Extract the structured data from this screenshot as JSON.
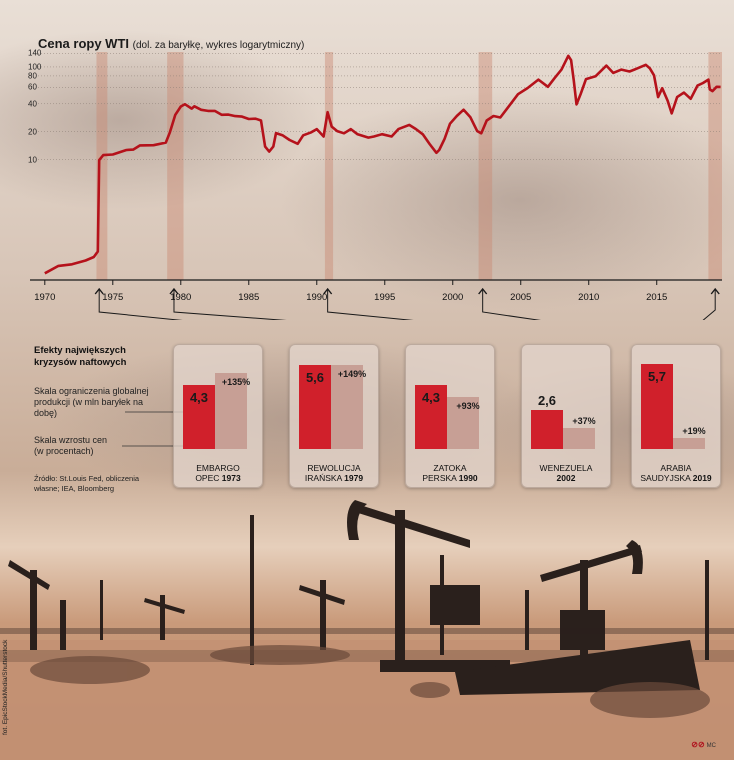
{
  "title": {
    "main": "Cena ropy WTI",
    "sub": "(dol. za baryłkę, wykres logarytmiczny)"
  },
  "chart_data": {
    "type": "line",
    "title": "Cena ropy WTI",
    "subtitle": "(dol. za baryłkę, wykres logarytmiczny)",
    "yscale": "log",
    "yticks": [
      10,
      20,
      40,
      60,
      80,
      100,
      140
    ],
    "ytick_labels": [
      "10",
      "20",
      "40",
      "60",
      "80",
      "100",
      "140"
    ],
    "ylim": [
      0.5,
      145
    ],
    "xticks": [
      1970,
      1975,
      1980,
      1985,
      1990,
      1995,
      2000,
      2005,
      2010,
      2015
    ],
    "xlim": [
      1969.5,
      2019.8
    ],
    "shaded_periods": [
      [
        1973.8,
        1974.6
      ],
      [
        1979.0,
        1980.2
      ],
      [
        1990.6,
        1991.2
      ],
      [
        2001.9,
        2002.9
      ],
      [
        2018.8,
        2019.8
      ]
    ],
    "series": [
      {
        "x": [
          1970.0,
          1971.0,
          1972.0,
          1973.0,
          1973.6,
          1973.9,
          1974.0,
          1974.3,
          1975.0,
          1976.0,
          1976.5,
          1977.0,
          1978.0,
          1978.9,
          1979.2,
          1979.6,
          1980.0,
          1980.3,
          1980.8,
          1981.0,
          1981.5,
          1982.0,
          1982.5,
          1983.0,
          1983.5,
          1984.0,
          1984.5,
          1985.0,
          1985.5,
          1985.9,
          1986.2,
          1986.5,
          1986.8,
          1987.0,
          1987.5,
          1988.0,
          1988.6,
          1989.0,
          1989.6,
          1990.0,
          1990.5,
          1990.8,
          1991.1,
          1991.5,
          1992.0,
          1992.5,
          1993.0,
          1993.8,
          1994.2,
          1994.8,
          1995.5,
          1996.0,
          1996.8,
          1997.3,
          1997.8,
          1998.3,
          1998.8,
          1999.0,
          1999.4,
          1999.8,
          2000.3,
          2000.8,
          2001.3,
          2001.8,
          2002.1,
          2002.5,
          2003.0,
          2003.5,
          2004.0,
          2004.8,
          2005.5,
          2006.3,
          2007.0,
          2007.5,
          2008.0,
          2008.5,
          2008.7,
          2008.9,
          2009.1,
          2009.4,
          2009.8,
          2010.5,
          2011.3,
          2011.8,
          2012.4,
          2013.0,
          2013.5,
          2014.2,
          2014.5,
          2014.8,
          2015.1,
          2015.4,
          2015.8,
          2016.1,
          2016.5,
          2017.0,
          2017.5,
          2018.0,
          2018.4,
          2018.8,
          2018.9,
          2019.1,
          2019.4,
          2019.7
        ],
        "y": [
          0.6,
          0.7,
          0.75,
          0.8,
          0.9,
          1.0,
          10.0,
          11.0,
          11.5,
          12.5,
          13.0,
          14.0,
          14.5,
          15.0,
          20.0,
          30.0,
          38.0,
          39.0,
          36.0,
          37.0,
          35.0,
          33.0,
          34.0,
          30.0,
          31.0,
          29.0,
          29.5,
          27.0,
          28.0,
          26.0,
          14.0,
          12.0,
          14.0,
          19.0,
          18.5,
          16.0,
          15.0,
          18.0,
          20.0,
          21.0,
          18.0,
          32.0,
          23.0,
          20.0,
          19.5,
          21.0,
          19.0,
          17.0,
          18.0,
          18.5,
          18.0,
          21.0,
          24.0,
          21.0,
          19.0,
          14.5,
          12.0,
          12.5,
          17.0,
          24.0,
          30.0,
          34.0,
          29.0,
          20.0,
          19.5,
          26.0,
          30.0,
          28.0,
          36.0,
          50.0,
          60.0,
          72.0,
          62.0,
          75.0,
          95.0,
          130.0,
          120.0,
          70.0,
          40.0,
          50.0,
          75.0,
          78.0,
          105.0,
          85.0,
          95.0,
          88.0,
          97.0,
          104.0,
          98.0,
          80.0,
          48.0,
          58.0,
          44.0,
          31.0,
          48.0,
          52.0,
          46.0,
          62.0,
          68.0,
          72.0,
          58.0,
          54.0,
          62.0,
          60.0
        ]
      }
    ]
  },
  "legend": {
    "title": "Efekty największych kryzysów naftowych",
    "production": "Skala ograniczenia globalnej produkcji (w mln baryłek na dobę)",
    "growth": "Skala wzrostu cen (w procentach)",
    "source": "Źródło: St.Louis Fed, obliczenia własne; IEA, Bloomberg"
  },
  "crises": [
    {
      "name": "EMBARGO OPEC",
      "year": "1973",
      "production": 4.3,
      "production_label": "4,3",
      "growth": 135,
      "growth_label": "+135%"
    },
    {
      "name": "REWOLUCJA IRAŃSKA",
      "year": "1979",
      "production": 5.6,
      "production_label": "5,6",
      "growth": 149,
      "growth_label": "+149%"
    },
    {
      "name": "ZATOKA PERSKA",
      "year": "1990",
      "production": 4.3,
      "production_label": "4,3",
      "growth": 93,
      "growth_label": "+93%"
    },
    {
      "name": "WENEZUELA",
      "year": "2002",
      "production": 2.6,
      "production_label": "2,6",
      "growth": 37,
      "growth_label": "+37%"
    },
    {
      "name": "ARABIA SAUDYJSKA",
      "year": "2019",
      "production": 5.7,
      "production_label": "5,7",
      "growth": 19,
      "growth_label": "+19%"
    }
  ],
  "credit": "fot. EpicStockMedia/Shutterstock",
  "logo": {
    "mark": "⊘⊘",
    "initials": "MC"
  },
  "colors": {
    "line": "#b5121b",
    "production_bar": "#d0202b",
    "growth_bar": "#c79f95",
    "shade": "#c98a74"
  }
}
